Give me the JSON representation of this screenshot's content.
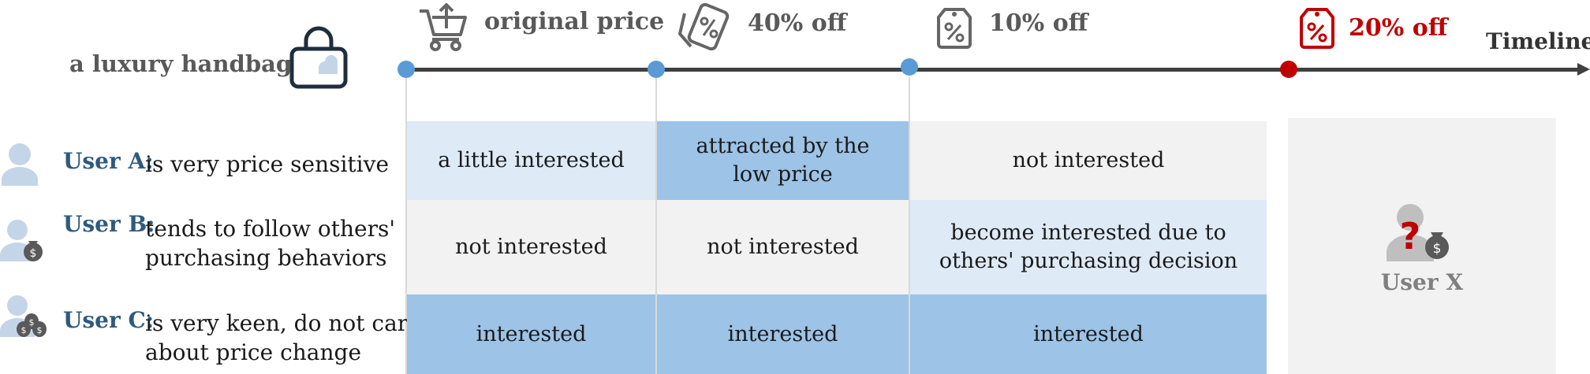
{
  "product": {
    "label": "a luxury handbag",
    "icon": "handbag-icon"
  },
  "timeline": {
    "label": "Timeline",
    "events": [
      {
        "label": "original price",
        "icon": "shopping-cart-icon",
        "color": "#5b9bd5"
      },
      {
        "label": "40% off",
        "icon": "discount-tag-icon",
        "color": "#5b9bd5"
      },
      {
        "label": "10% off",
        "icon": "discount-tag-icon",
        "color": "#5b9bd5"
      },
      {
        "label": "20% off",
        "icon": "discount-tag-icon",
        "color": "#c00000"
      }
    ]
  },
  "users": [
    {
      "name": "User A",
      "colon": ":",
      "desc_line1": "is very price sensitive",
      "desc_line2": "",
      "icon": "user-icon"
    },
    {
      "name": "User B",
      "colon": ":",
      "desc_line1": "tends to follow others'",
      "desc_line2": "purchasing behaviors",
      "icon": "user-money-bag-icon"
    },
    {
      "name": "User C",
      "colon": ":",
      "desc_line1": "is very keen, do not care",
      "desc_line2": "about price change",
      "icon": "user-money-bags-icon"
    }
  ],
  "grid": [
    [
      {
        "line1": "a little interested",
        "line2": ""
      },
      {
        "line1": "attracted by the",
        "line2": "low price"
      },
      {
        "line1": "not interested",
        "line2": ""
      }
    ],
    [
      {
        "line1": "not interested",
        "line2": ""
      },
      {
        "line1": "not interested",
        "line2": ""
      },
      {
        "line1": "become interested due to",
        "line2": "others' purchasing decision"
      }
    ],
    [
      {
        "line1": "interested",
        "line2": ""
      },
      {
        "line1": "interested",
        "line2": ""
      },
      {
        "line1": "interested",
        "line2": ""
      }
    ]
  ],
  "user_x": {
    "label": "User X",
    "icon": "unknown-user-icon",
    "mark": "?"
  },
  "colors": {
    "light_blue": "#deeaf6",
    "medium_blue": "#9dc3e6",
    "light_gray": "#f2f2f2",
    "accent_red": "#c00000",
    "accent_blue": "#5b9bd5",
    "user_name": "#2e5a7e"
  }
}
